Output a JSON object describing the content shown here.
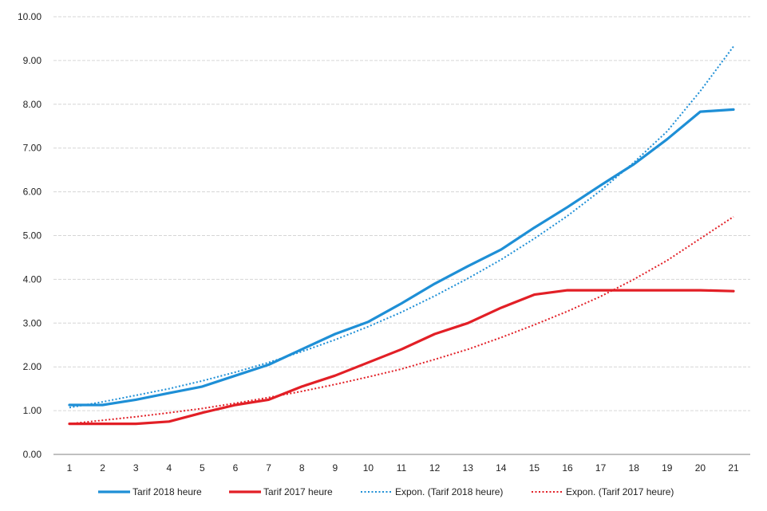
{
  "chart_data": {
    "type": "line",
    "title": "",
    "xlabel": "",
    "ylabel": "",
    "categories": [
      "1",
      "2",
      "3",
      "4",
      "5",
      "6",
      "7",
      "8",
      "9",
      "10",
      "11",
      "12",
      "13",
      "14",
      "15",
      "16",
      "17",
      "18",
      "19",
      "20",
      "21"
    ],
    "y_ticks": [
      "0.00",
      "1.00",
      "2.00",
      "3.00",
      "4.00",
      "5.00",
      "6.00",
      "7.00",
      "8.00",
      "9.00",
      "10.00"
    ],
    "ylim": [
      0,
      10
    ],
    "grid": true,
    "legend_position": "bottom",
    "series": [
      {
        "name": "Tarif 2018 heure",
        "color": "#1e8fd6",
        "style": "solid",
        "values": [
          1.13,
          1.13,
          1.25,
          1.4,
          1.55,
          1.8,
          2.05,
          2.4,
          2.75,
          3.03,
          3.45,
          3.9,
          4.3,
          4.68,
          5.18,
          5.65,
          6.15,
          6.63,
          7.2,
          7.83,
          7.88
        ]
      },
      {
        "name": "Tarif 2017 heure",
        "color": "#e21f26",
        "style": "solid",
        "values": [
          0.7,
          0.7,
          0.7,
          0.75,
          0.95,
          1.13,
          1.25,
          1.55,
          1.8,
          2.1,
          2.4,
          2.75,
          3.0,
          3.35,
          3.65,
          3.75,
          3.75,
          3.75,
          3.75,
          3.75,
          3.73
        ]
      },
      {
        "name": "Expon. (Tarif 2018 heure)",
        "color": "#1e8fd6",
        "style": "dotted",
        "values": [
          1.07,
          1.2,
          1.35,
          1.5,
          1.68,
          1.88,
          2.1,
          2.35,
          2.62,
          2.92,
          3.25,
          3.62,
          4.02,
          4.45,
          4.93,
          5.45,
          6.03,
          6.67,
          7.38,
          8.3,
          9.32
        ]
      },
      {
        "name": "Expon. (Tarif 2017 heure)",
        "color": "#e21f26",
        "style": "dotted",
        "values": [
          0.7,
          0.78,
          0.86,
          0.95,
          1.05,
          1.17,
          1.3,
          1.44,
          1.6,
          1.77,
          1.95,
          2.17,
          2.4,
          2.67,
          2.96,
          3.27,
          3.61,
          4.0,
          4.43,
          4.93,
          5.43
        ]
      }
    ]
  }
}
